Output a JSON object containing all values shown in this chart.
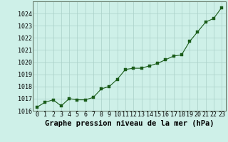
{
  "x": [
    0,
    1,
    2,
    3,
    4,
    5,
    6,
    7,
    8,
    9,
    10,
    11,
    12,
    13,
    14,
    15,
    16,
    17,
    18,
    19,
    20,
    21,
    22,
    23
  ],
  "y": [
    1016.3,
    1016.7,
    1016.9,
    1016.4,
    1017.0,
    1016.9,
    1016.9,
    1017.1,
    1017.8,
    1018.0,
    1018.6,
    1019.4,
    1019.5,
    1019.5,
    1019.7,
    1019.9,
    1020.2,
    1020.5,
    1020.6,
    1021.7,
    1022.5,
    1023.3,
    1023.6,
    1024.5
  ],
  "line_color": "#1a5c1a",
  "marker_color": "#1a5c1a",
  "bg_color": "#cef0e8",
  "grid_color": "#aad0c8",
  "xlabel": "Graphe pression niveau de la mer (hPa)",
  "xlabel_fontsize": 7.5,
  "tick_label_fontsize": 6,
  "ylim": [
    1016,
    1025
  ],
  "xlim": [
    -0.5,
    23.5
  ],
  "yticks": [
    1016,
    1017,
    1018,
    1019,
    1020,
    1021,
    1022,
    1023,
    1024
  ],
  "xticks": [
    0,
    1,
    2,
    3,
    4,
    5,
    6,
    7,
    8,
    9,
    10,
    11,
    12,
    13,
    14,
    15,
    16,
    17,
    18,
    19,
    20,
    21,
    22,
    23
  ],
  "marker_size": 2.5,
  "line_width": 0.8
}
